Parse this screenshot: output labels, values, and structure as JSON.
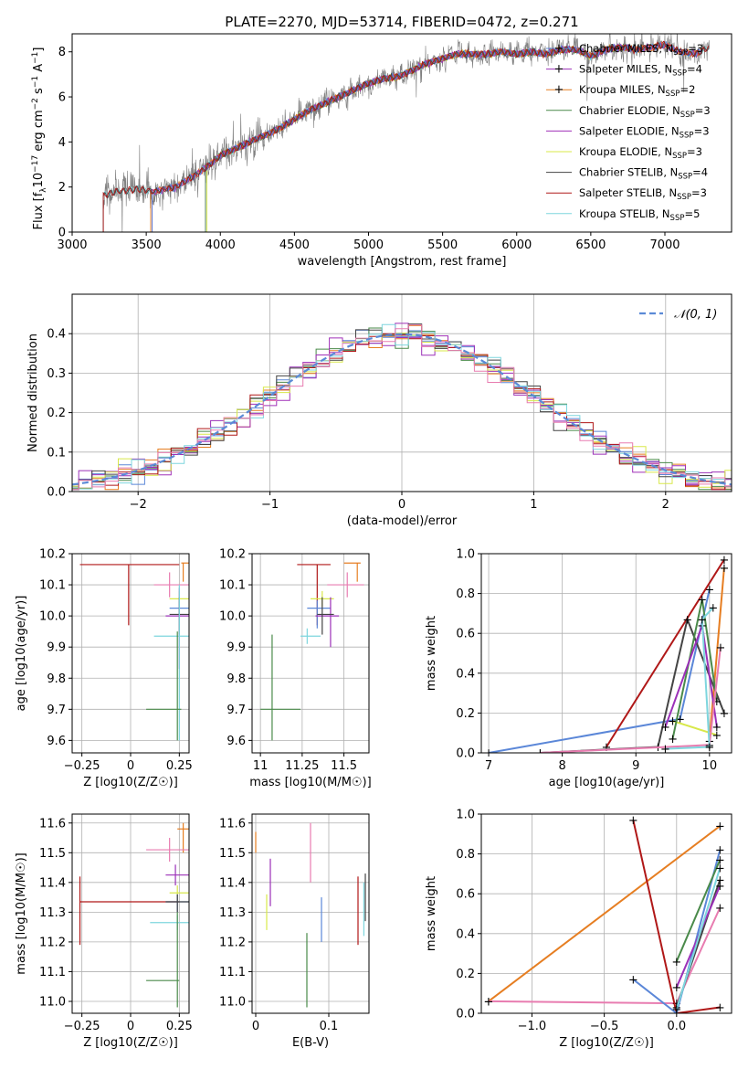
{
  "figure_title": "PLATE=2270, MJD=53714, FIBERID=0472, z=0.271",
  "colors": {
    "Chabrier MILES": "#5b87d8",
    "Salpeter MILES": "#9b30b8",
    "Kroupa MILES": "#e67e22",
    "Chabrier ELODIE": "#4a8a4a",
    "Salpeter ELODIE": "#a030b8",
    "Kroupa ELODIE": "#d8e84a",
    "Chabrier STELIB": "#444444",
    "Salpeter STELIB": "#b01818",
    "Kroupa STELIB": "#7ed6de",
    "data": "#808080",
    "gaussian": "#5b8ad6",
    "pink": "#e87cb0"
  },
  "chart_data": [
    {
      "id": "spectrum",
      "type": "line",
      "xlabel": "wavelength [Angstrom, rest frame]",
      "ylabel": "Flux [f_λ 10^-17 erg cm^-2 s^-1 A^-1]",
      "xlim": [
        3000,
        7450
      ],
      "ylim": [
        0,
        8.8
      ],
      "xticks": [
        3000,
        3500,
        4000,
        4500,
        5000,
        5500,
        6000,
        6500,
        7000
      ],
      "yticks": [
        0,
        2,
        4,
        6,
        8
      ],
      "grid": false,
      "legend_position": "top-right",
      "legend": [
        {
          "label": "Chabrier MILES, N",
          "sub": "SSP",
          "suffix": "=3"
        },
        {
          "label": "Salpeter MILES, N",
          "sub": "SSP",
          "suffix": "=4"
        },
        {
          "label": "Kroupa MILES, N",
          "sub": "SSP",
          "suffix": "=2"
        },
        {
          "label": "Chabrier ELODIE, N",
          "sub": "SSP",
          "suffix": "=3"
        },
        {
          "label": "Salpeter ELODIE, N",
          "sub": "SSP",
          "suffix": "=3"
        },
        {
          "label": "Kroupa ELODIE, N",
          "sub": "SSP",
          "suffix": "=3"
        },
        {
          "label": "Chabrier STELIB, N",
          "sub": "SSP",
          "suffix": "=4"
        },
        {
          "label": "Salpeter STELIB, N",
          "sub": "SSP",
          "suffix": "=3"
        },
        {
          "label": "Kroupa STELIB, N",
          "sub": "SSP",
          "suffix": "=5"
        }
      ],
      "continuum": [
        [
          3200,
          1.6
        ],
        [
          3300,
          1.8
        ],
        [
          3450,
          1.9
        ],
        [
          3550,
          1.8
        ],
        [
          3700,
          2.0
        ],
        [
          3850,
          2.6
        ],
        [
          3950,
          3.1
        ],
        [
          4000,
          3.4
        ],
        [
          4100,
          3.7
        ],
        [
          4200,
          4.0
        ],
        [
          4300,
          4.3
        ],
        [
          4400,
          4.6
        ],
        [
          4500,
          5.0
        ],
        [
          4600,
          5.4
        ],
        [
          4700,
          5.7
        ],
        [
          4800,
          6.0
        ],
        [
          4900,
          6.3
        ],
        [
          5000,
          6.6
        ],
        [
          5100,
          6.8
        ],
        [
          5200,
          6.9
        ],
        [
          5300,
          7.2
        ],
        [
          5400,
          7.5
        ],
        [
          5500,
          7.7
        ],
        [
          5600,
          7.9
        ],
        [
          5700,
          7.9
        ],
        [
          5800,
          7.9
        ],
        [
          5900,
          8.0
        ],
        [
          6000,
          7.9
        ],
        [
          6100,
          8.0
        ],
        [
          6200,
          7.9
        ],
        [
          6300,
          8.1
        ],
        [
          6400,
          8.1
        ],
        [
          6500,
          7.8
        ],
        [
          6600,
          8.1
        ],
        [
          6700,
          8.2
        ],
        [
          6800,
          8.1
        ],
        [
          6900,
          8.2
        ],
        [
          7000,
          8.3
        ],
        [
          7100,
          8.0
        ],
        [
          7200,
          7.9
        ],
        [
          7300,
          8.2
        ]
      ]
    },
    {
      "id": "residuals",
      "type": "line",
      "xlabel": "(data-model)/error",
      "ylabel": "Normed distribution",
      "xlim": [
        -2.5,
        2.5
      ],
      "ylim": [
        0,
        0.5
      ],
      "xticks": [
        -2,
        -1,
        0,
        1,
        2
      ],
      "yticks": [
        0.0,
        0.1,
        0.2,
        0.3,
        0.4
      ],
      "grid": true,
      "legend_position": "top-right",
      "legend": [
        {
          "label": "N(0,1)"
        }
      ],
      "bin_width": 0.1
    },
    {
      "id": "age_vs_Z",
      "type": "scatter",
      "xlabel": "Z [log10(Z/Z☉)]",
      "ylabel": "age [log10(age/yr)]",
      "xlim": [
        -0.3,
        0.3
      ],
      "ylim": [
        9.56,
        10.2
      ],
      "xticks": [
        -0.25,
        0.0,
        0.25
      ],
      "yticks": [
        9.6,
        9.7,
        9.8,
        9.9,
        10.0,
        10.1,
        10.2
      ],
      "grid": true,
      "points": [
        {
          "s": "Salpeter STELIB",
          "x": -0.01,
          "y": 10.165,
          "xe": [
            -0.26,
            0.25
          ],
          "ye": [
            9.97,
            10.165
          ]
        },
        {
          "s": "Kroupa MILES",
          "x": 0.27,
          "y": 10.17,
          "xe": [
            0.26,
            0.3
          ],
          "ye": [
            10.11,
            10.17
          ]
        },
        {
          "s": "pink",
          "x": 0.2,
          "y": 10.1,
          "xe": [
            0.12,
            0.3
          ],
          "ye": [
            10.06,
            10.14
          ]
        },
        {
          "s": "Kroupa ELODIE",
          "x": 0.25,
          "y": 10.055,
          "xe": [
            0.2,
            0.3
          ],
          "ye": [
            10.03,
            10.08
          ]
        },
        {
          "s": "Chabrier MILES",
          "x": 0.25,
          "y": 10.025,
          "xe": [
            0.2,
            0.3
          ],
          "ye": [
            10.0,
            10.05
          ]
        },
        {
          "s": "Salpeter MILES",
          "x": 0.25,
          "y": 10.0,
          "xe": [
            0.18,
            0.31
          ],
          "ye": [
            9.83,
            10.09
          ]
        },
        {
          "s": "Chabrier STELIB",
          "x": 0.25,
          "y": 10.005,
          "xe": [
            0.2,
            0.31
          ],
          "ye": [
            9.94,
            10.06
          ]
        },
        {
          "s": "Kroupa STELIB",
          "x": 0.25,
          "y": 9.935,
          "xe": [
            0.12,
            0.3
          ],
          "ye": [
            9.6,
            10.1
          ]
        },
        {
          "s": "Chabrier ELODIE",
          "x": 0.24,
          "y": 9.7,
          "xe": [
            0.08,
            0.26
          ],
          "ye": [
            9.6,
            9.95
          ]
        }
      ]
    },
    {
      "id": "age_vs_mass",
      "type": "scatter",
      "xlabel": "mass [log10(M/M☉)]",
      "ylabel": "",
      "xlim": [
        10.95,
        11.65
      ],
      "ylim": [
        9.56,
        10.2
      ],
      "xticks": [
        11.0,
        11.25,
        11.5
      ],
      "yticks": [
        9.6,
        9.7,
        9.8,
        9.9,
        10.0,
        10.1,
        10.2
      ],
      "grid": true,
      "points": [
        {
          "s": "Salpeter STELIB",
          "x": 11.34,
          "y": 10.165,
          "xe": [
            11.22,
            11.42
          ],
          "ye": [
            9.97,
            10.165
          ]
        },
        {
          "s": "Kroupa MILES",
          "x": 11.58,
          "y": 10.17,
          "xe": [
            11.5,
            11.6
          ],
          "ye": [
            10.11,
            10.17
          ]
        },
        {
          "s": "pink",
          "x": 11.52,
          "y": 10.1,
          "xe": [
            11.4,
            11.62
          ],
          "ye": [
            10.06,
            10.14
          ]
        },
        {
          "s": "Kroupa ELODIE",
          "x": 11.37,
          "y": 10.055,
          "xe": [
            11.3,
            11.44
          ],
          "ye": [
            10.03,
            10.08
          ]
        },
        {
          "s": "Chabrier MILES",
          "x": 11.34,
          "y": 10.025,
          "xe": [
            11.28,
            11.42
          ],
          "ye": [
            9.96,
            10.05
          ]
        },
        {
          "s": "Salpeter MILES",
          "x": 11.42,
          "y": 10.0,
          "xe": [
            11.33,
            11.47
          ],
          "ye": [
            9.9,
            10.06
          ]
        },
        {
          "s": "Chabrier STELIB",
          "x": 11.37,
          "y": 10.005,
          "xe": [
            11.34,
            11.44
          ],
          "ye": [
            9.94,
            10.06
          ]
        },
        {
          "s": "Kroupa STELIB",
          "x": 11.28,
          "y": 9.935,
          "xe": [
            11.24,
            11.36
          ],
          "ye": [
            9.91,
            9.96
          ]
        },
        {
          "s": "Chabrier ELODIE",
          "x": 11.07,
          "y": 9.7,
          "xe": [
            11.0,
            11.24
          ],
          "ye": [
            9.6,
            9.94
          ]
        }
      ]
    },
    {
      "id": "weight_vs_age",
      "type": "line",
      "xlabel": "age [log10(age/yr)]",
      "ylabel": "mass weight",
      "xlim": [
        6.9,
        10.3
      ],
      "ylim": [
        0,
        1.0
      ],
      "xticks": [
        7,
        8,
        9,
        10
      ],
      "yticks": [
        0.0,
        0.2,
        0.4,
        0.6,
        0.8,
        1.0
      ],
      "grid": true,
      "series": [
        {
          "s": "Chabrier MILES",
          "points": [
            [
              7.0,
              0.0
            ],
            [
              9.6,
              0.17
            ],
            [
              10.0,
              0.82
            ]
          ]
        },
        {
          "s": "Salpeter STELIB",
          "points": [
            [
              8.6,
              0.03
            ],
            [
              10.2,
              0.97
            ]
          ]
        },
        {
          "s": "Kroupa MILES",
          "points": [
            [
              10.0,
              0.06
            ],
            [
              10.2,
              0.93
            ]
          ]
        },
        {
          "s": "Kroupa ELODIE",
          "points": [
            [
              9.5,
              0.16
            ],
            [
              10.1,
              0.09
            ]
          ]
        },
        {
          "s": "Chabrier STELIB",
          "points": [
            [
              7.7,
              0.0
            ],
            [
              9.3,
              0.03
            ],
            [
              9.7,
              0.67
            ],
            [
              10.2,
              0.2
            ]
          ]
        },
        {
          "s": "Chabrier ELODIE",
          "points": [
            [
              9.5,
              0.07
            ],
            [
              9.9,
              0.77
            ],
            [
              10.1,
              0.26
            ]
          ]
        },
        {
          "s": "Salpeter MILES",
          "points": [
            [
              9.4,
              0.13
            ],
            [
              9.9,
              0.64
            ],
            [
              10.1,
              0.13
            ]
          ]
        },
        {
          "s": "pink",
          "points": [
            [
              7.7,
              0.0
            ],
            [
              10.0,
              0.04
            ],
            [
              10.15,
              0.53
            ]
          ]
        },
        {
          "s": "Kroupa STELIB",
          "points": [
            [
              9.4,
              0.02
            ],
            [
              10.0,
              0.03
            ],
            [
              9.9,
              0.67
            ],
            [
              10.05,
              0.73
            ]
          ]
        }
      ]
    },
    {
      "id": "mass_vs_Z",
      "type": "scatter",
      "xlabel": "Z [log10(Z/Z☉)]",
      "ylabel": "mass [log10(M/M☉)]",
      "xlim": [
        -0.3,
        0.3
      ],
      "ylim": [
        10.96,
        11.63
      ],
      "xticks": [
        -0.25,
        0.0,
        0.25
      ],
      "yticks": [
        11.0,
        11.1,
        11.2,
        11.3,
        11.4,
        11.5,
        11.6
      ],
      "grid": true,
      "points": [
        {
          "s": "Salpeter STELIB",
          "x": -0.26,
          "y": 11.335,
          "xe": [
            -0.26,
            0.25
          ],
          "ye": [
            11.19,
            11.42
          ]
        },
        {
          "s": "Kroupa MILES",
          "x": 0.27,
          "y": 11.58,
          "xe": [
            0.24,
            0.3
          ],
          "ye": [
            11.5,
            11.6
          ]
        },
        {
          "s": "pink",
          "x": 0.2,
          "y": 11.51,
          "xe": [
            0.08,
            0.3
          ],
          "ye": [
            11.47,
            11.55
          ]
        },
        {
          "s": "Salpeter MILES",
          "x": 0.23,
          "y": 11.425,
          "xe": [
            0.18,
            0.3
          ],
          "ye": [
            11.39,
            11.46
          ]
        },
        {
          "s": "Kroupa ELODIE",
          "x": 0.24,
          "y": 11.365,
          "xe": [
            0.2,
            0.3
          ],
          "ye": [
            11.34,
            11.39
          ]
        },
        {
          "s": "Chabrier MILES",
          "x": 0.24,
          "y": 11.335,
          "xe": [
            0.18,
            0.3
          ],
          "ye": [
            11.3,
            11.36
          ]
        },
        {
          "s": "Chabrier STELIB",
          "x": 0.24,
          "y": 11.335,
          "xe": [
            0.18,
            0.31
          ],
          "ye": [
            11.3,
            11.36
          ]
        },
        {
          "s": "Kroupa STELIB",
          "x": 0.24,
          "y": 11.265,
          "xe": [
            0.1,
            0.3
          ],
          "ye": [
            11.24,
            11.29
          ]
        },
        {
          "s": "Chabrier ELODIE",
          "x": 0.24,
          "y": 11.07,
          "xe": [
            0.08,
            0.25
          ],
          "ye": [
            10.98,
            11.3
          ]
        }
      ]
    },
    {
      "id": "mass_vs_ebv",
      "type": "scatter",
      "xlabel": "E(B-V)",
      "ylabel": "",
      "xlim": [
        -0.005,
        0.155
      ],
      "ylim": [
        10.96,
        11.63
      ],
      "xticks": [
        0.0,
        0.1
      ],
      "yticks": [
        11.0,
        11.1,
        11.2,
        11.3,
        11.4,
        11.5,
        11.6
      ],
      "grid": true,
      "points": [
        {
          "s": "Kroupa MILES",
          "x": 0.0,
          "y": 11.53,
          "ye": [
            11.5,
            11.57
          ]
        },
        {
          "s": "Salpeter MILES",
          "x": 0.02,
          "y": 11.4,
          "ye": [
            11.32,
            11.48
          ]
        },
        {
          "s": "Kroupa ELODIE",
          "x": 0.015,
          "y": 11.3,
          "ye": [
            11.24,
            11.36
          ]
        },
        {
          "s": "Chabrier ELODIE",
          "x": 0.07,
          "y": 11.1,
          "ye": [
            10.98,
            11.23
          ]
        },
        {
          "s": "pink",
          "x": 0.075,
          "y": 11.5,
          "ye": [
            11.4,
            11.6
          ]
        },
        {
          "s": "Chabrier MILES",
          "x": 0.09,
          "y": 11.27,
          "ye": [
            11.2,
            11.35
          ]
        },
        {
          "s": "Salpeter STELIB",
          "x": 0.14,
          "y": 11.3,
          "ye": [
            11.19,
            11.42
          ]
        },
        {
          "s": "Kroupa STELIB",
          "x": 0.148,
          "y": 11.33,
          "ye": [
            11.22,
            11.4
          ]
        },
        {
          "s": "Chabrier STELIB",
          "x": 0.15,
          "y": 11.35,
          "ye": [
            11.27,
            11.43
          ]
        }
      ]
    },
    {
      "id": "weight_vs_Z",
      "type": "line",
      "xlabel": "Z [log10(Z/Z☉)]",
      "ylabel": "mass weight",
      "xlim": [
        -1.35,
        0.38
      ],
      "ylim": [
        0,
        1.0
      ],
      "xticks": [
        -1.0,
        -0.5,
        0.0
      ],
      "yticks": [
        0.0,
        0.2,
        0.4,
        0.6,
        0.8,
        1.0
      ],
      "grid": true,
      "series": [
        {
          "s": "Kroupa MILES",
          "points": [
            [
              -1.3,
              0.06
            ],
            [
              0.3,
              0.94
            ]
          ]
        },
        {
          "s": "pink",
          "points": [
            [
              -1.3,
              0.06
            ],
            [
              0.0,
              0.05
            ],
            [
              0.3,
              0.53
            ]
          ]
        },
        {
          "s": "Salpeter STELIB",
          "points": [
            [
              -0.3,
              0.97
            ],
            [
              0.0,
              0.0
            ],
            [
              0.3,
              0.03
            ]
          ]
        },
        {
          "s": "Chabrier MILES",
          "points": [
            [
              -0.3,
              0.17
            ],
            [
              0.0,
              0.0
            ],
            [
              0.3,
              0.82
            ]
          ]
        },
        {
          "s": "Chabrier STELIB",
          "points": [
            [
              0.0,
              0.03
            ],
            [
              0.3,
              0.67
            ]
          ]
        },
        {
          "s": "Chabrier ELODIE",
          "points": [
            [
              0.0,
              0.26
            ],
            [
              0.3,
              0.77
            ]
          ]
        },
        {
          "s": "Salpeter MILES",
          "points": [
            [
              0.0,
              0.13
            ],
            [
              0.3,
              0.64
            ]
          ]
        },
        {
          "s": "Kroupa STELIB",
          "points": [
            [
              0.0,
              0.02
            ],
            [
              0.3,
              0.73
            ]
          ]
        }
      ]
    }
  ]
}
